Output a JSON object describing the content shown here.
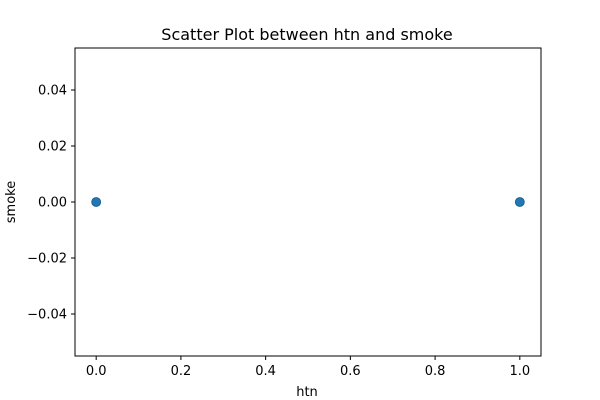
{
  "chart_data": {
    "type": "scatter",
    "title": "Scatter Plot between htn and smoke",
    "xlabel": "htn",
    "ylabel": "smoke",
    "xlim": [
      -0.05,
      1.05
    ],
    "ylim": [
      -0.055,
      0.055
    ],
    "xticks": [
      0.0,
      0.2,
      0.4,
      0.6,
      0.8,
      1.0
    ],
    "xtick_labels": [
      "0.0",
      "0.2",
      "0.4",
      "0.6",
      "0.8",
      "1.0"
    ],
    "yticks": [
      -0.04,
      -0.02,
      0.0,
      0.02,
      0.04
    ],
    "ytick_labels": [
      "−0.04",
      "−0.02",
      "0.00",
      "0.02",
      "0.04"
    ],
    "grid": false,
    "marker_color": "#1f77b4",
    "series": [
      {
        "x": [
          0,
          1
        ],
        "y": [
          0,
          0
        ]
      }
    ]
  }
}
